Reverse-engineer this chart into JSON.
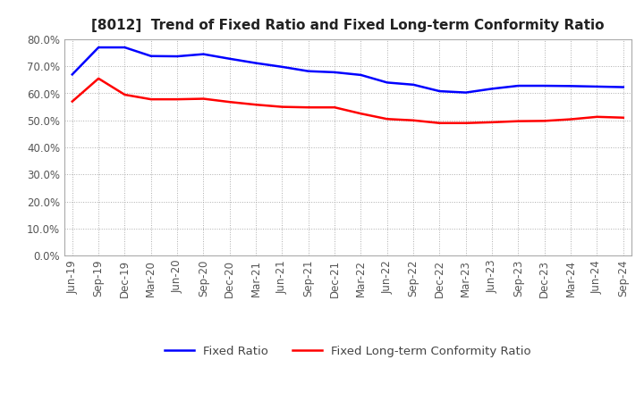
{
  "title": "[8012]  Trend of Fixed Ratio and Fixed Long-term Conformity Ratio",
  "x_labels": [
    "Jun-19",
    "Sep-19",
    "Dec-19",
    "Mar-20",
    "Jun-20",
    "Sep-20",
    "Dec-20",
    "Mar-21",
    "Jun-21",
    "Sep-21",
    "Dec-21",
    "Mar-22",
    "Jun-22",
    "Sep-22",
    "Dec-22",
    "Mar-23",
    "Jun-23",
    "Sep-23",
    "Dec-23",
    "Mar-24",
    "Jun-24",
    "Sep-24"
  ],
  "fixed_ratio": [
    0.67,
    0.77,
    0.77,
    0.738,
    0.737,
    0.745,
    0.728,
    0.712,
    0.698,
    0.682,
    0.678,
    0.668,
    0.64,
    0.632,
    0.608,
    0.603,
    0.617,
    0.628,
    0.628,
    0.627,
    0.625,
    0.623
  ],
  "fixed_lt_ratio": [
    0.57,
    0.655,
    0.595,
    0.578,
    0.578,
    0.58,
    0.568,
    0.558,
    0.55,
    0.548,
    0.548,
    0.525,
    0.505,
    0.5,
    0.49,
    0.49,
    0.493,
    0.497,
    0.498,
    0.504,
    0.513,
    0.51
  ],
  "fixed_ratio_color": "#0000FF",
  "fixed_lt_ratio_color": "#FF0000",
  "ylim": [
    0.0,
    0.8
  ],
  "yticks": [
    0.0,
    0.1,
    0.2,
    0.3,
    0.4,
    0.5,
    0.6,
    0.7,
    0.8
  ],
  "background_color": "#FFFFFF",
  "plot_bg_color": "#FFFFFF",
  "grid_color": "#999999",
  "legend_fixed_ratio": "Fixed Ratio",
  "legend_fixed_lt_ratio": "Fixed Long-term Conformity Ratio",
  "line_width": 1.8,
  "title_fontsize": 11,
  "tick_fontsize": 8.5,
  "legend_fontsize": 9.5
}
